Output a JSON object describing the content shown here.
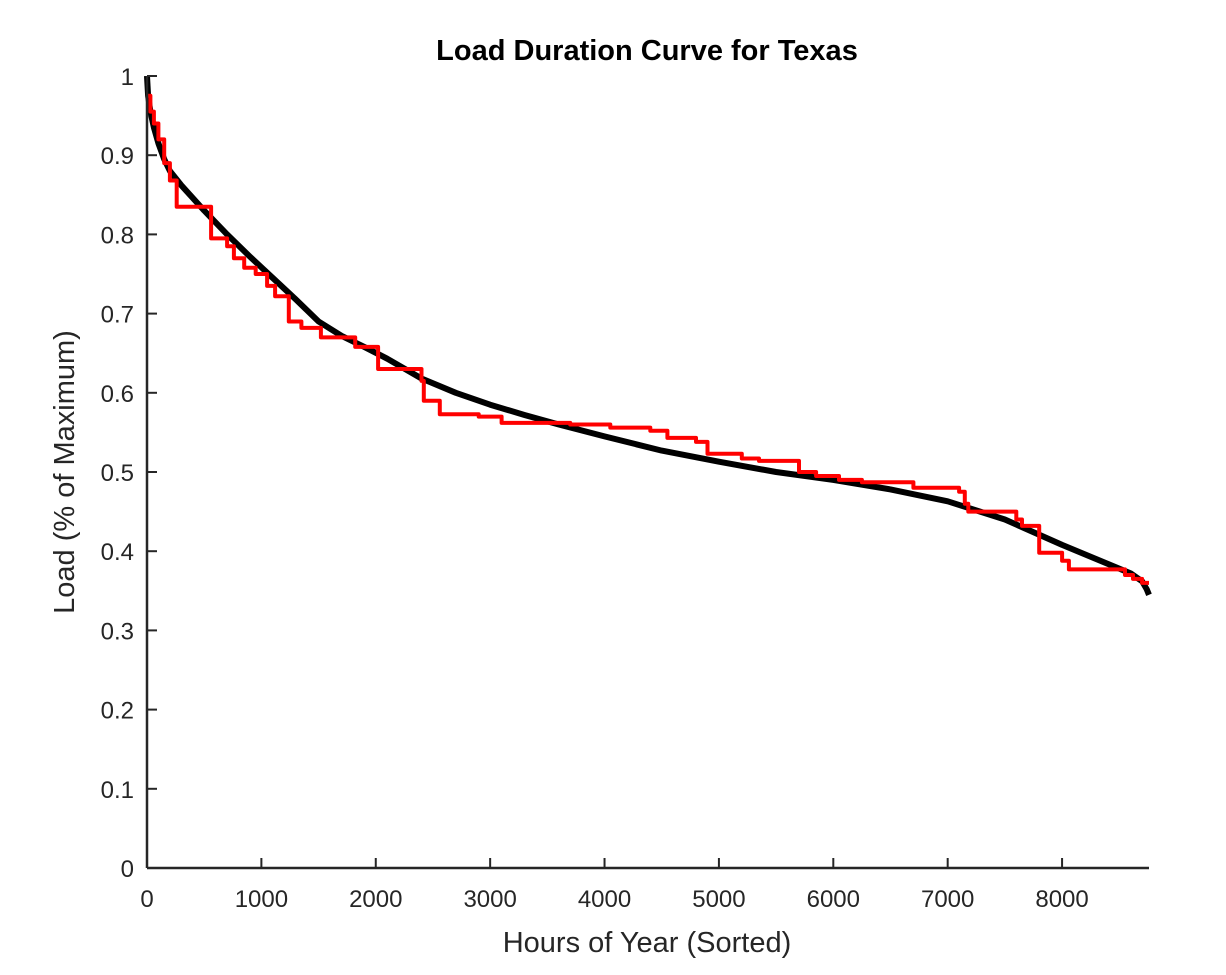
{
  "chart_data": {
    "type": "line",
    "title": "Load Duration Curve for Texas",
    "xlabel": "Hours of Year (Sorted)",
    "ylabel": "Load (% of Maximum)",
    "xlim": [
      0,
      8760
    ],
    "ylim": [
      0,
      1
    ],
    "xticks": [
      0,
      1000,
      2000,
      3000,
      4000,
      5000,
      6000,
      7000,
      8000
    ],
    "yticks": [
      0,
      0.1,
      0.2,
      0.3,
      0.4,
      0.5,
      0.6,
      0.7,
      0.8,
      0.9,
      1
    ],
    "xtick_labels": [
      "0",
      "1000",
      "2000",
      "3000",
      "4000",
      "5000",
      "6000",
      "7000",
      "8000"
    ],
    "ytick_labels": [
      "0",
      "0.1",
      "0.2",
      "0.3",
      "0.4",
      "0.5",
      "0.6",
      "0.7",
      "0.8",
      "0.9",
      "1"
    ],
    "grid": false,
    "series": [
      {
        "color": "#000000",
        "style": "smooth",
        "points": [
          [
            0,
            1.0
          ],
          [
            10,
            0.975
          ],
          [
            30,
            0.955
          ],
          [
            60,
            0.935
          ],
          [
            100,
            0.915
          ],
          [
            150,
            0.895
          ],
          [
            200,
            0.88
          ],
          [
            300,
            0.862
          ],
          [
            400,
            0.846
          ],
          [
            500,
            0.83
          ],
          [
            700,
            0.8
          ],
          [
            900,
            0.772
          ],
          [
            1100,
            0.745
          ],
          [
            1300,
            0.718
          ],
          [
            1500,
            0.69
          ],
          [
            1700,
            0.672
          ],
          [
            1900,
            0.658
          ],
          [
            2100,
            0.643
          ],
          [
            2400,
            0.618
          ],
          [
            2700,
            0.6
          ],
          [
            3000,
            0.585
          ],
          [
            3300,
            0.572
          ],
          [
            3600,
            0.56
          ],
          [
            4000,
            0.545
          ],
          [
            4500,
            0.527
          ],
          [
            5000,
            0.513
          ],
          [
            5500,
            0.5
          ],
          [
            6000,
            0.49
          ],
          [
            6500,
            0.478
          ],
          [
            7000,
            0.463
          ],
          [
            7500,
            0.44
          ],
          [
            8000,
            0.408
          ],
          [
            8300,
            0.39
          ],
          [
            8600,
            0.372
          ],
          [
            8700,
            0.362
          ],
          [
            8740,
            0.352
          ],
          [
            8760,
            0.345
          ]
        ]
      },
      {
        "color": "#ff0000",
        "style": "step",
        "points": [
          [
            0,
            0.975
          ],
          [
            30,
            0.955
          ],
          [
            60,
            0.94
          ],
          [
            100,
            0.92
          ],
          [
            150,
            0.89
          ],
          [
            200,
            0.868
          ],
          [
            260,
            0.835
          ],
          [
            560,
            0.795
          ],
          [
            700,
            0.785
          ],
          [
            760,
            0.77
          ],
          [
            850,
            0.758
          ],
          [
            950,
            0.75
          ],
          [
            1050,
            0.735
          ],
          [
            1120,
            0.722
          ],
          [
            1240,
            0.69
          ],
          [
            1350,
            0.682
          ],
          [
            1520,
            0.67
          ],
          [
            1820,
            0.658
          ],
          [
            2020,
            0.63
          ],
          [
            2400,
            0.615
          ],
          [
            2420,
            0.59
          ],
          [
            2560,
            0.573
          ],
          [
            2900,
            0.57
          ],
          [
            3100,
            0.562
          ],
          [
            3700,
            0.56
          ],
          [
            4050,
            0.556
          ],
          [
            4400,
            0.552
          ],
          [
            4550,
            0.543
          ],
          [
            4800,
            0.538
          ],
          [
            4900,
            0.523
          ],
          [
            5200,
            0.517
          ],
          [
            5350,
            0.514
          ],
          [
            5700,
            0.5
          ],
          [
            5850,
            0.495
          ],
          [
            6050,
            0.49
          ],
          [
            6250,
            0.487
          ],
          [
            6700,
            0.48
          ],
          [
            7100,
            0.475
          ],
          [
            7150,
            0.46
          ],
          [
            7180,
            0.45
          ],
          [
            7600,
            0.44
          ],
          [
            7650,
            0.432
          ],
          [
            7800,
            0.398
          ],
          [
            8000,
            0.388
          ],
          [
            8060,
            0.377
          ],
          [
            8550,
            0.37
          ],
          [
            8620,
            0.365
          ],
          [
            8700,
            0.36
          ],
          [
            8760,
            0.36
          ]
        ]
      }
    ]
  }
}
